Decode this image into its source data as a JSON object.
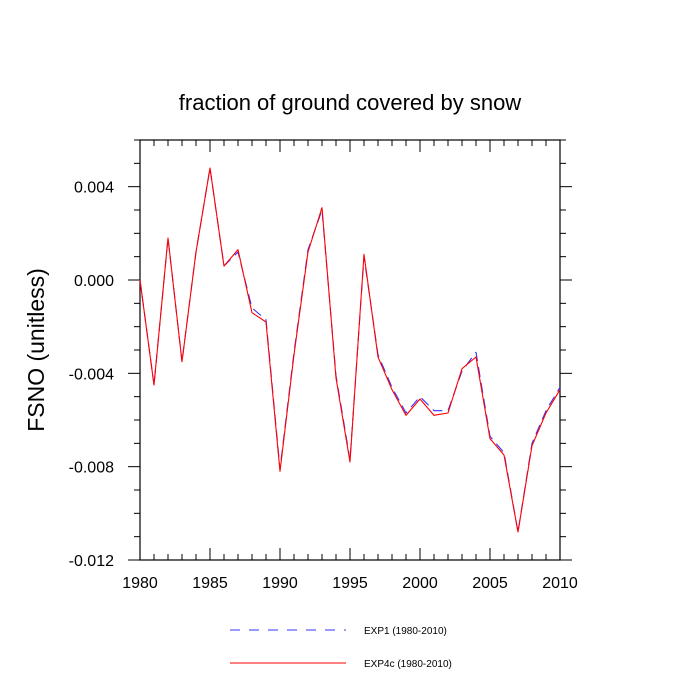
{
  "chart_data": {
    "type": "line",
    "title": "fraction of ground covered by snow",
    "xlabel": "",
    "ylabel": "FSNO  (unitless)",
    "xlim": [
      1980,
      2010
    ],
    "ylim": [
      -0.012,
      0.006
    ],
    "x_ticks": [
      1980,
      1985,
      1990,
      1995,
      2000,
      2005,
      2010
    ],
    "x_tick_labels": [
      "1980",
      "1985",
      "1990",
      "1995",
      "2000",
      "2005",
      "2010"
    ],
    "y_ticks": [
      -0.012,
      -0.008,
      -0.004,
      0.0,
      0.004
    ],
    "y_tick_labels": [
      "-0.012",
      "-0.008",
      "-0.004",
      "0.000",
      "0.004"
    ],
    "grid": false,
    "legend_position": "bottom",
    "x": [
      1980,
      1981,
      1982,
      1983,
      1984,
      1985,
      1986,
      1987,
      1988,
      1989,
      1990,
      1991,
      1992,
      1993,
      1994,
      1995,
      1996,
      1997,
      1998,
      1999,
      2000,
      2001,
      2002,
      2003,
      2004,
      2005,
      2006,
      2007,
      2008,
      2009,
      2010
    ],
    "series": [
      {
        "name": "EXP1 (1980-2010)",
        "color": "#3333ff",
        "dash": "dashed",
        "values": [
          0.0,
          -0.0045,
          0.0018,
          -0.0035,
          0.0012,
          0.0048,
          0.0006,
          0.0012,
          -0.0012,
          -0.0017,
          -0.0081,
          -0.0031,
          0.0013,
          0.003,
          -0.0041,
          -0.0077,
          0.001,
          -0.0032,
          -0.0046,
          -0.0057,
          -0.005,
          -0.0056,
          -0.0056,
          -0.0039,
          -0.0031,
          -0.0067,
          -0.0074,
          -0.0108,
          -0.007,
          -0.0056,
          -0.0046
        ]
      },
      {
        "name": "EXP4c (1980-2010)",
        "color": "#ff0000",
        "dash": "solid",
        "values": [
          0.0,
          -0.0045,
          0.0018,
          -0.0035,
          0.0012,
          0.0048,
          0.0006,
          0.0013,
          -0.0014,
          -0.0018,
          -0.0082,
          -0.0032,
          0.0012,
          0.0031,
          -0.0042,
          -0.0078,
          0.0011,
          -0.0033,
          -0.0047,
          -0.0058,
          -0.0051,
          -0.0058,
          -0.0057,
          -0.0038,
          -0.0033,
          -0.0068,
          -0.0075,
          -0.0108,
          -0.0071,
          -0.0057,
          -0.0047
        ]
      }
    ]
  }
}
